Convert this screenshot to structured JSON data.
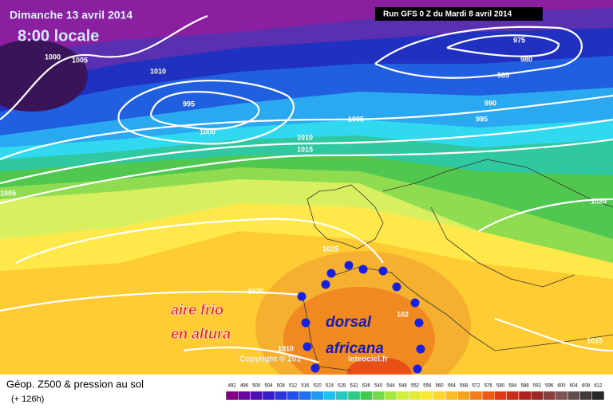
{
  "header": {
    "date": "Dimanche 13 avril 2014",
    "time": "8:00 locale",
    "run": "Run GFS 0 Z du Mardi 8 avril 2014"
  },
  "isobar_labels": [
    "1000",
    "1005",
    "1010",
    "995",
    "1000",
    "1005",
    "1010",
    "1015",
    "975",
    "980",
    "985",
    "990",
    "995",
    "1005",
    "1020",
    "1025",
    "1020",
    "1010",
    "1015",
    "102"
  ],
  "annotations": {
    "cold": [
      "aire frio",
      "en altura"
    ],
    "ridge": [
      "dorsal",
      "africana"
    ]
  },
  "copyright": [
    "Copyright © 201",
    "leteociel.fr"
  ],
  "legend": {
    "title": "Géop. Z500 & pression au sol",
    "lead": "(+ 126h)",
    "scale": [
      492,
      496,
      500,
      504,
      508,
      512,
      516,
      520,
      524,
      528,
      532,
      536,
      540,
      544,
      548,
      552,
      556,
      560,
      564,
      568,
      572,
      576,
      580,
      584,
      588,
      592,
      596,
      600,
      604,
      608,
      612
    ]
  }
}
